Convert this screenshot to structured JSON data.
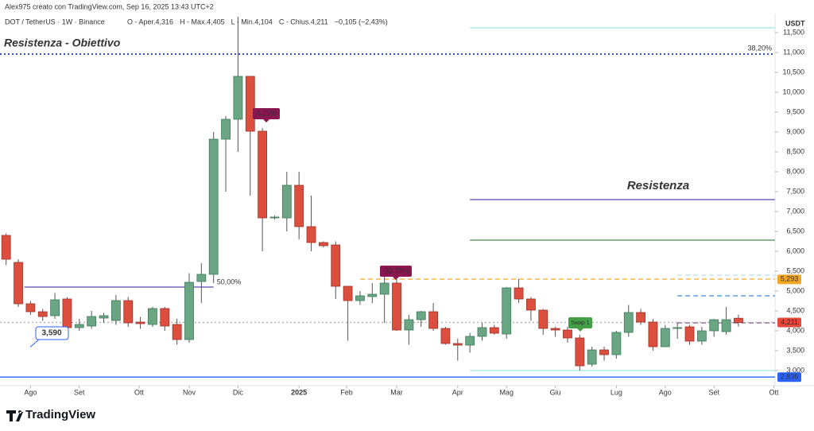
{
  "chart_data": {
    "type": "candlestick",
    "title": "Alex975 creato con TradingView.com, Sep 16, 2025 13:43 UTC+2",
    "symbol": "DOT / TetherUS · 1W · Binance",
    "legend_items": [
      {
        "label": "O - Aper.",
        "value": "4,316"
      },
      {
        "label": "H - Max.",
        "value": "4,405"
      },
      {
        "label": "L - Min.",
        "value": "4,104"
      },
      {
        "label": "C - Chius.",
        "value": "4,211"
      }
    ],
    "change": "−0,105 (−2,43%)",
    "y_unit": "USDT",
    "brand": "TradingView",
    "up_color": "#6aa584",
    "down_color": "#dc4f3f",
    "categories": [
      null,
      null,
      null,
      null,
      null,
      null,
      null,
      null,
      null,
      null,
      null,
      null,
      null,
      null,
      null,
      null,
      null,
      null,
      null,
      null,
      null,
      null,
      null,
      null,
      null,
      null,
      null,
      null,
      null,
      null,
      null,
      null,
      null,
      null,
      null,
      null,
      null,
      null,
      null,
      null,
      null,
      null,
      null,
      null,
      null,
      null,
      null,
      null,
      null,
      null,
      null,
      null,
      null,
      null,
      null,
      null,
      null,
      null,
      null,
      null,
      null
    ],
    "open": [
      6400,
      5720,
      4680,
      4480,
      4380,
      4800,
      4080,
      4120,
      4320,
      4260,
      4760,
      4220,
      4160,
      4560,
      4160,
      3780,
      5240,
      5420,
      8820,
      9320,
      10400,
      9020,
      6840,
      6840,
      7660,
      6620,
      6220,
      6160,
      5120,
      4760,
      4860,
      4920,
      5200,
      4020,
      4280,
      4480,
      4060,
      3680,
      3640,
      3860,
      4080,
      3920,
      5080,
      4800,
      4520,
      4060,
      4020,
      3820,
      3160,
      3520,
      3400,
      3960,
      4460,
      4220,
      3600,
      4060,
      4100,
      3740,
      4000,
      3980,
      4316
    ],
    "high": [
      6450,
      5800,
      4750,
      4550,
      4950,
      4850,
      4300,
      4500,
      4450,
      4900,
      4850,
      4350,
      4600,
      4600,
      4300,
      5450,
      5700,
      9000,
      9400,
      11900,
      10400,
      9100,
      6900,
      8000,
      8000,
      7400,
      6250,
      6250,
      5100,
      5000,
      5200,
      5400,
      5300,
      4400,
      4500,
      4700,
      4100,
      3800,
      3950,
      4200,
      4150,
      5100,
      5300,
      4850,
      4550,
      4100,
      4100,
      3900,
      3600,
      3600,
      4000,
      4650,
      4550,
      4300,
      4150,
      4200,
      4150,
      4100,
      4300,
      4600,
      4405
    ],
    "low": [
      5650,
      4600,
      4400,
      4250,
      4300,
      4000,
      4000,
      4050,
      4200,
      4150,
      4100,
      4050,
      4100,
      4000,
      3650,
      3700,
      4700,
      5200,
      7500,
      8500,
      7400,
      6000,
      6800,
      6500,
      6300,
      6000,
      6100,
      4800,
      3750,
      4650,
      4700,
      4200,
      4000,
      3650,
      4100,
      4000,
      3650,
      3250,
      3450,
      3750,
      3900,
      3800,
      4700,
      4250,
      3900,
      3850,
      3700,
      3000,
      3100,
      3250,
      3300,
      3850,
      4150,
      3500,
      3600,
      3800,
      3650,
      3650,
      3850,
      3900,
      4104
    ],
    "close": [
      5800,
      4680,
      4480,
      4360,
      4780,
      4080,
      4160,
      4360,
      4380,
      4760,
      4200,
      4180,
      4560,
      4120,
      3780,
      5220,
      5420,
      8820,
      9320,
      10400,
      9020,
      6840,
      6860,
      7660,
      6620,
      6220,
      6140,
      5120,
      4760,
      4880,
      4920,
      5200,
      4020,
      4280,
      4480,
      4060,
      3680,
      3640,
      3860,
      4080,
      3940,
      5080,
      4800,
      4520,
      4060,
      4020,
      3820,
      3120,
      3520,
      3400,
      3960,
      4460,
      4220,
      3600,
      4060,
      4080,
      3740,
      4000,
      4280,
      4280,
      4211
    ],
    "ylim": [
      2620,
      11980
    ],
    "yticks": [
      {
        "value": 3000,
        "label": "3,000"
      },
      {
        "value": 3500,
        "label": "3,500"
      },
      {
        "value": 4000,
        "label": "4,000"
      },
      {
        "value": 4500,
        "label": "4,500"
      },
      {
        "value": 5000,
        "label": "5,000"
      },
      {
        "value": 5500,
        "label": "5,500"
      },
      {
        "value": 6000,
        "label": "6,000"
      },
      {
        "value": 6500,
        "label": "6,500"
      },
      {
        "value": 7000,
        "label": "7,000"
      },
      {
        "value": 7500,
        "label": "7,500"
      },
      {
        "value": 8000,
        "label": "8,000"
      },
      {
        "value": 8500,
        "label": "8,500"
      },
      {
        "value": 9000,
        "label": "9,000"
      },
      {
        "value": 9500,
        "label": "9,500"
      },
      {
        "value": 10000,
        "label": "10,000"
      },
      {
        "value": 10500,
        "label": "10,500"
      },
      {
        "value": 11000,
        "label": "11,000"
      },
      {
        "value": 11500,
        "label": "11,500"
      }
    ],
    "xlim": [
      -0.5,
      63
    ],
    "xticks": [
      {
        "value": 2,
        "label": "Ago"
      },
      {
        "value": 6,
        "label": "Set"
      },
      {
        "value": 10.9,
        "label": "Ott"
      },
      {
        "value": 15,
        "label": "Nov"
      },
      {
        "value": 19,
        "label": "Dic"
      },
      {
        "value": 24,
        "label": "2025"
      },
      {
        "value": 27.9,
        "label": "Feb"
      },
      {
        "value": 32,
        "label": "Mar"
      },
      {
        "value": 37,
        "label": "Apr"
      },
      {
        "value": 41,
        "label": "Mag"
      },
      {
        "value": 45,
        "label": "Giu"
      },
      {
        "value": 50,
        "label": "Lug"
      },
      {
        "value": 54,
        "label": "Ago"
      },
      {
        "value": 58,
        "label": "Set"
      },
      {
        "value": 62.9,
        "label": "Ott"
      }
    ],
    "levels": [
      {
        "value": 10960,
        "color": "#2f4fd6",
        "style": "dotted",
        "x_start": -0.5,
        "label": "38,20%"
      },
      {
        "value": 11620,
        "color": "#9fe3e0",
        "style": "solid",
        "x_start": 38
      },
      {
        "value": 7300,
        "color": "#5b4bb0",
        "style": "solid",
        "x_start": 38
      },
      {
        "value": 6280,
        "color": "#4b8a50",
        "style": "solid",
        "x_start": 38
      },
      {
        "value": 5300,
        "color": "#f5a623",
        "style": "dashed",
        "x_start": 29
      },
      {
        "value": 5400,
        "color": "#b9ddf0",
        "style": "dashed",
        "x_start": 55
      },
      {
        "value": 4880,
        "color": "#3a8bd8",
        "style": "dashed",
        "x_start": 55
      },
      {
        "value": 4200,
        "color": "#7a3f8f",
        "style": "dashed",
        "x_start": 55
      },
      {
        "value": 4211,
        "color": "#b0b0b0",
        "style": "dotted",
        "x_start": -0.5
      },
      {
        "value": 3000,
        "color": "#9fe3e0",
        "style": "solid",
        "x_start": 38
      },
      {
        "value": 2836,
        "color": "#2962ff",
        "style": "solid",
        "x_start": -0.5
      },
      {
        "value": 5100,
        "color": "#5b4bb0",
        "style": "solid",
        "x_start": 1.5,
        "x_end": 17,
        "label": "50,00%"
      }
    ],
    "price_tags": [
      {
        "value": 5293,
        "label": "5,293",
        "color": "#f5a623"
      },
      {
        "value": 4211,
        "label": "4,211",
        "color": "#e8473b"
      },
      {
        "value": 2836,
        "label": "2,836",
        "color": "#2962ff"
      }
    ],
    "annotations": [
      "Resistenza - Obiettivo",
      "Resistenza"
    ],
    "callouts": [
      "4.21%",
      "-22.79%",
      "Swap 1"
    ],
    "price_callout": {
      "value": 3590,
      "label": "3,590"
    }
  }
}
